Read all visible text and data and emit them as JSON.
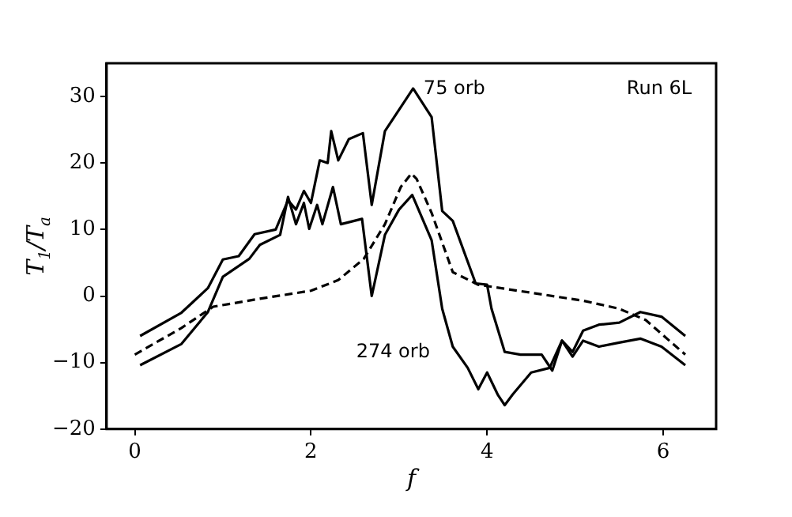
{
  "chart_data": {
    "type": "line",
    "xlabel": "f",
    "ylabel": "T$_{1}$/T$_{a}$",
    "xlim": [
      -0.32,
      6.6
    ],
    "ylim": [
      -20,
      35
    ],
    "xticks": [
      0,
      2,
      4,
      6
    ],
    "yticks": [
      -20,
      -10,
      0,
      10,
      20,
      30
    ],
    "grid": false,
    "legend": false,
    "marker": "none",
    "series": [
      {
        "color": "#000000",
        "line_style": "solid",
        "x": [
          0.06,
          0.53,
          0.83,
          1.0,
          1.18,
          1.36,
          1.6,
          1.74,
          1.83,
          1.92,
          2.0,
          2.1,
          2.19,
          2.23,
          2.31,
          2.43,
          2.59,
          2.69,
          2.84,
          3.0,
          3.16,
          3.37,
          3.49,
          3.61,
          3.87,
          4.0,
          4.05,
          4.2,
          4.38,
          4.62,
          4.74,
          4.85,
          4.97,
          5.09,
          5.27,
          5.5,
          5.74,
          5.98,
          6.25
        ],
        "values": [
          -6,
          -2.5,
          1.2,
          5.5,
          6,
          9.3,
          10,
          14.4,
          13,
          15.8,
          14,
          20.4,
          20,
          24.8,
          20.4,
          23.6,
          24.5,
          13.7,
          24.8,
          28,
          31.2,
          26.9,
          12.8,
          11.3,
          1.9,
          1.7,
          -1.9,
          -8.4,
          -8.8,
          -8.8,
          -11.2,
          -6.7,
          -8.4,
          -5.2,
          -4.3,
          -4,
          -2.4,
          -3.1,
          -6
        ]
      },
      {
        "color": "#000000",
        "line_style": "solid",
        "x": [
          0.06,
          0.53,
          0.83,
          1.0,
          1.3,
          1.42,
          1.65,
          1.74,
          1.83,
          1.92,
          1.98,
          2.07,
          2.13,
          2.25,
          2.34,
          2.58,
          2.69,
          2.84,
          3.0,
          3.15,
          3.37,
          3.49,
          3.61,
          3.78,
          3.9,
          4.0,
          4.12,
          4.2,
          4.29,
          4.5,
          4.71,
          4.85,
          4.97,
          5.09,
          5.27,
          5.5,
          5.74,
          5.98,
          6.25
        ],
        "values": [
          -10.4,
          -7.2,
          -2.4,
          2.9,
          5.6,
          7.7,
          9.2,
          14.9,
          10.8,
          14,
          10.1,
          13.7,
          10.8,
          16.4,
          10.8,
          11.6,
          0,
          9.2,
          13,
          15.2,
          8.4,
          -1.9,
          -7.6,
          -10.8,
          -14,
          -11.5,
          -14.8,
          -16.4,
          -14.8,
          -11.5,
          -10.8,
          -6.7,
          -9.1,
          -6.7,
          -7.6,
          -7,
          -6.4,
          -7.6,
          -10.4
        ]
      },
      {
        "color": "#000000",
        "line_style": "dashed",
        "x": [
          0,
          0.53,
          0.89,
          1.42,
          2.0,
          2.31,
          2.6,
          2.84,
          3.02,
          3.14,
          3.2,
          3.37,
          3.61,
          3.9,
          4.5,
          5.09,
          5.5,
          5.8,
          6.25
        ],
        "values": [
          -8.8,
          -4.8,
          -1.6,
          -0.4,
          0.8,
          2.4,
          5.6,
          10.8,
          16.4,
          18.4,
          17.6,
          12.5,
          3.6,
          1.7,
          0.5,
          -0.7,
          -1.9,
          -3.6,
          -8.8
        ]
      }
    ],
    "annotations": [
      "75 orb",
      "274 orb",
      "Run 6L"
    ]
  }
}
